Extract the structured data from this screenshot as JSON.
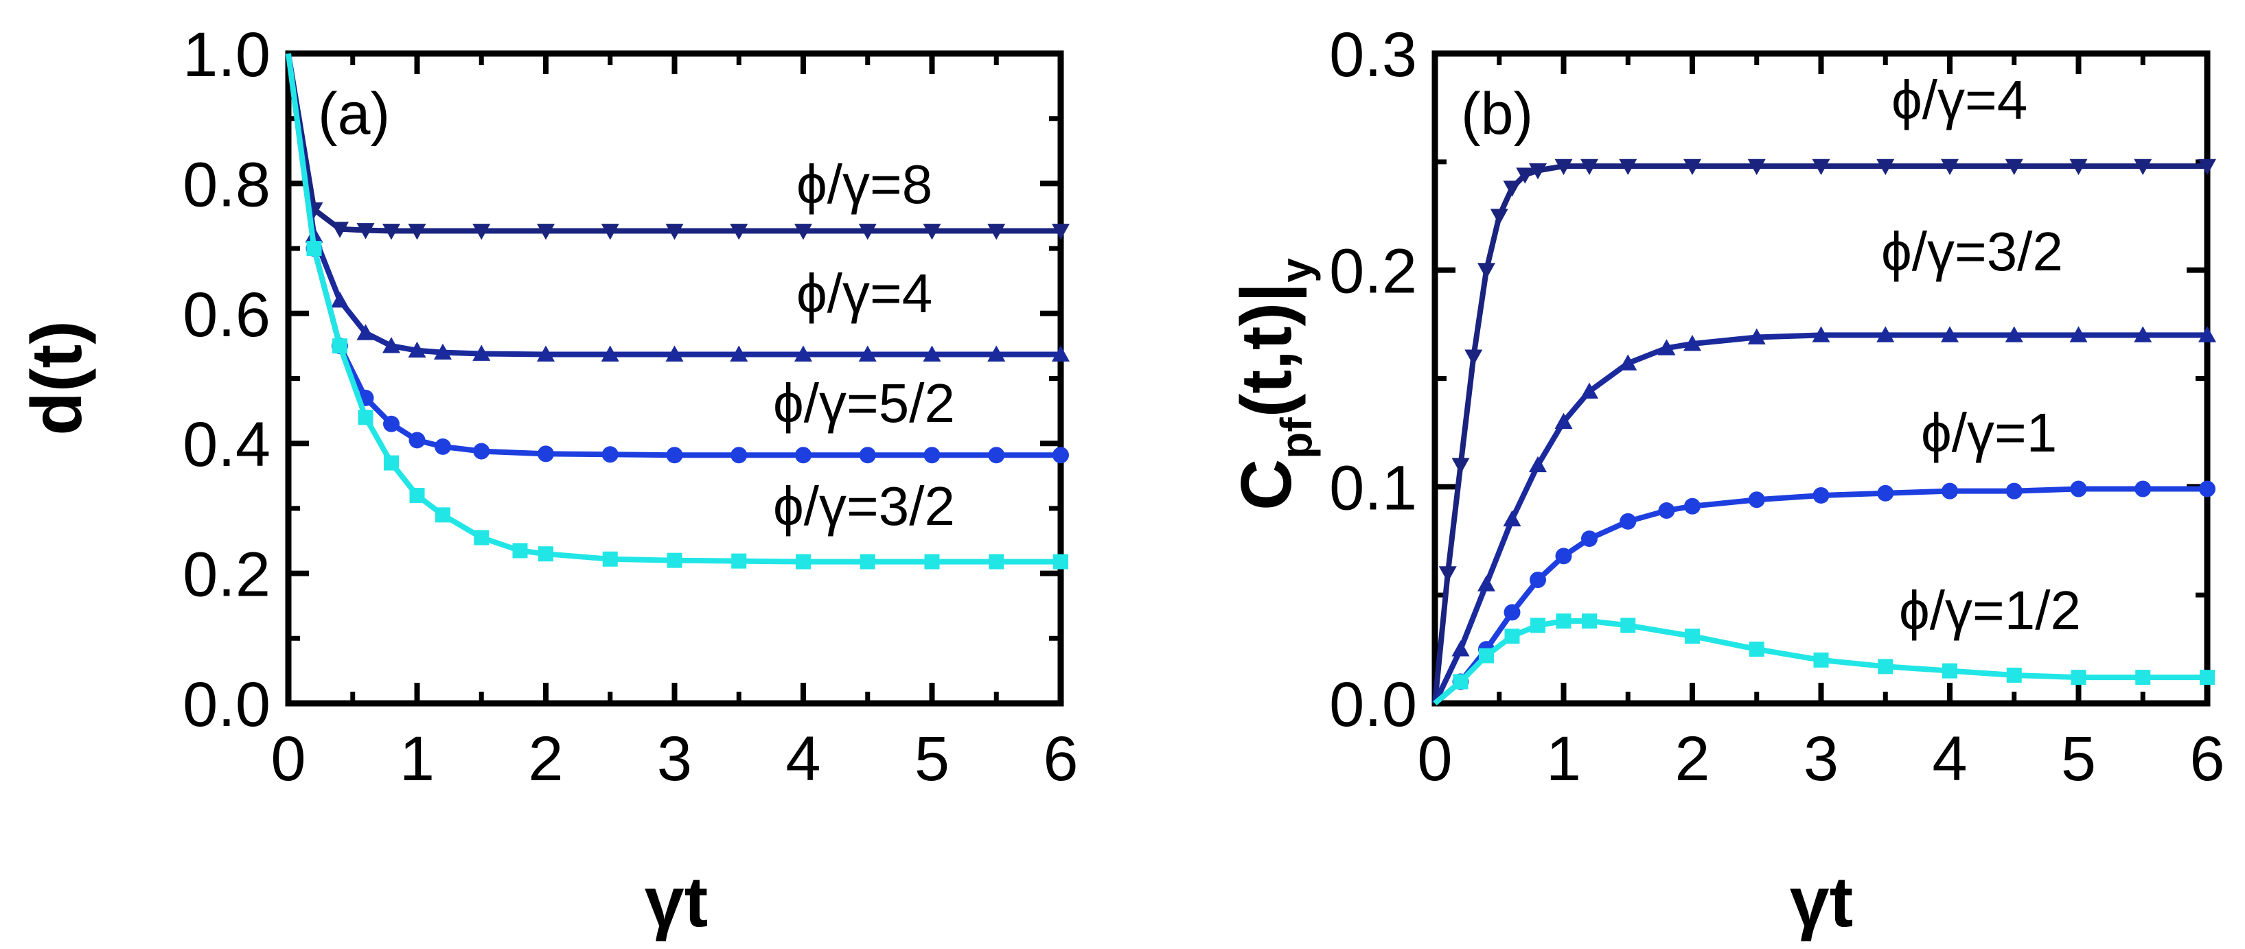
{
  "chart_data": [
    {
      "type": "line",
      "panel_label": "(a)",
      "xlabel": "γt",
      "ylabel": "d(t)",
      "xlim": [
        0,
        6
      ],
      "ylim": [
        0,
        1.0
      ],
      "xticks": [
        "0",
        "1",
        "2",
        "3",
        "4",
        "5",
        "6"
      ],
      "yticks": [
        "0.0",
        "0.2",
        "0.4",
        "0.6",
        "0.8",
        "1.0"
      ],
      "series": [
        {
          "name": "ϕ/γ=8",
          "color": "#1a237e",
          "marker": "triangle-down",
          "x": [
            0,
            0.2,
            0.4,
            0.6,
            0.8,
            1.0,
            1.5,
            2,
            2.5,
            3,
            3.5,
            4,
            4.5,
            5,
            5.5,
            6
          ],
          "values": [
            1.0,
            0.76,
            0.73,
            0.728,
            0.727,
            0.727,
            0.727,
            0.727,
            0.727,
            0.727,
            0.727,
            0.727,
            0.727,
            0.727,
            0.727,
            0.727
          ]
        },
        {
          "name": "ϕ/γ=4",
          "color": "#1a2a9c",
          "marker": "triangle-up",
          "x": [
            0,
            0.2,
            0.4,
            0.6,
            0.8,
            1.0,
            1.2,
            1.5,
            2,
            2.5,
            3,
            3.5,
            4,
            4.5,
            5,
            5.5,
            6
          ],
          "values": [
            1.0,
            0.72,
            0.62,
            0.57,
            0.55,
            0.543,
            0.54,
            0.538,
            0.537,
            0.537,
            0.537,
            0.537,
            0.537,
            0.537,
            0.537,
            0.537,
            0.537
          ]
        },
        {
          "name": "ϕ/γ=5/2",
          "color": "#1e3fe0",
          "marker": "circle",
          "x": [
            0,
            0.2,
            0.4,
            0.6,
            0.8,
            1.0,
            1.2,
            1.5,
            2,
            2.5,
            3,
            3.5,
            4,
            4.5,
            5,
            5.5,
            6
          ],
          "values": [
            1.0,
            0.7,
            0.55,
            0.47,
            0.43,
            0.405,
            0.395,
            0.388,
            0.384,
            0.383,
            0.382,
            0.382,
            0.382,
            0.382,
            0.382,
            0.382,
            0.382
          ]
        },
        {
          "name": "ϕ/γ=3/2",
          "color": "#22e6e6",
          "marker": "square",
          "x": [
            0,
            0.2,
            0.4,
            0.6,
            0.8,
            1.0,
            1.2,
            1.5,
            1.8,
            2,
            2.5,
            3,
            3.5,
            4,
            4.5,
            5,
            5.5,
            6
          ],
          "values": [
            1.0,
            0.7,
            0.55,
            0.44,
            0.37,
            0.32,
            0.29,
            0.255,
            0.235,
            0.23,
            0.222,
            0.22,
            0.219,
            0.218,
            0.218,
            0.218,
            0.218,
            0.218
          ]
        }
      ]
    },
    {
      "type": "line",
      "panel_label": "(b)",
      "xlabel": "γt",
      "ylabel": "C",
      "ylabel_sub": "pf",
      "ylabel_rest": "(t,t)|",
      "ylabel_sub2": "y",
      "xlim": [
        0,
        6
      ],
      "ylim": [
        0,
        0.3
      ],
      "xticks": [
        "0",
        "1",
        "2",
        "3",
        "4",
        "5",
        "6"
      ],
      "yticks": [
        "0.0",
        "0.1",
        "0.2",
        "0.3"
      ],
      "series": [
        {
          "name": "ϕ/γ=4",
          "color": "#1a237e",
          "marker": "triangle-down",
          "x": [
            0,
            0.1,
            0.2,
            0.3,
            0.4,
            0.5,
            0.6,
            0.7,
            0.8,
            1.0,
            1.2,
            1.5,
            2,
            2.5,
            3,
            3.5,
            4,
            4.5,
            5,
            5.5,
            6
          ],
          "values": [
            0,
            0.06,
            0.11,
            0.16,
            0.2,
            0.225,
            0.238,
            0.244,
            0.246,
            0.248,
            0.248,
            0.248,
            0.248,
            0.248,
            0.248,
            0.248,
            0.248,
            0.248,
            0.248,
            0.248,
            0.248
          ]
        },
        {
          "name": "ϕ/γ=3/2",
          "color": "#1a2a9c",
          "marker": "triangle-up",
          "x": [
            0,
            0.2,
            0.4,
            0.6,
            0.8,
            1.0,
            1.2,
            1.5,
            1.8,
            2,
            2.5,
            3,
            3.5,
            4,
            4.5,
            5,
            5.5,
            6
          ],
          "values": [
            0,
            0.025,
            0.055,
            0.085,
            0.11,
            0.13,
            0.144,
            0.157,
            0.164,
            0.166,
            0.169,
            0.17,
            0.17,
            0.17,
            0.17,
            0.17,
            0.17,
            0.17
          ]
        },
        {
          "name": "ϕ/γ=1",
          "color": "#1e3fe0",
          "marker": "circle",
          "x": [
            0,
            0.2,
            0.4,
            0.6,
            0.8,
            1.0,
            1.2,
            1.5,
            1.8,
            2,
            2.5,
            3,
            3.5,
            4,
            4.5,
            5,
            5.5,
            6
          ],
          "values": [
            0,
            0.01,
            0.025,
            0.042,
            0.057,
            0.068,
            0.076,
            0.084,
            0.089,
            0.091,
            0.094,
            0.096,
            0.097,
            0.098,
            0.098,
            0.099,
            0.099,
            0.099
          ]
        },
        {
          "name": "ϕ/γ=1/2",
          "color": "#22e6e6",
          "marker": "square",
          "x": [
            0,
            0.2,
            0.4,
            0.6,
            0.8,
            1.0,
            1.2,
            1.5,
            2,
            2.5,
            3,
            3.5,
            4,
            4.5,
            5,
            5.5,
            6
          ],
          "values": [
            0,
            0.01,
            0.022,
            0.031,
            0.036,
            0.038,
            0.038,
            0.036,
            0.031,
            0.025,
            0.02,
            0.017,
            0.015,
            0.013,
            0.012,
            0.012,
            0.012
          ]
        }
      ]
    }
  ]
}
